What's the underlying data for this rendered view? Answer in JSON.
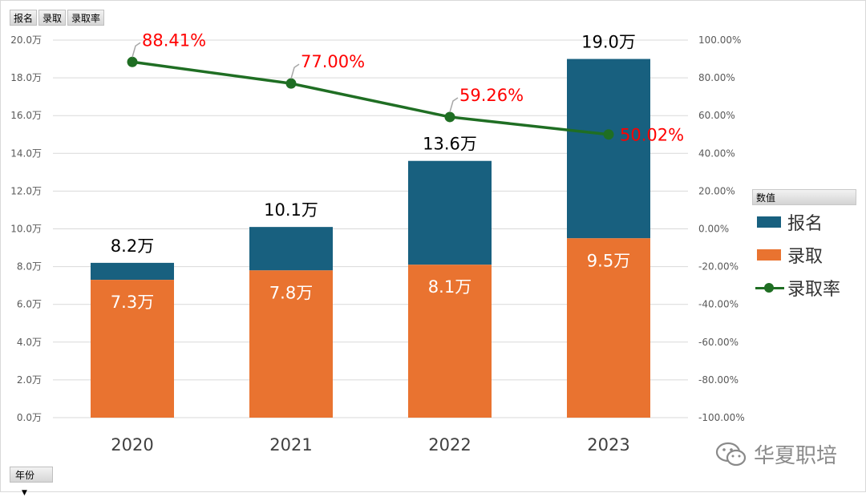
{
  "toolbar": {
    "fields": [
      "报名",
      "录取",
      "录取率"
    ]
  },
  "legend": {
    "header": "数值",
    "items": [
      {
        "label": "报名",
        "color": "#18607f"
      },
      {
        "label": "录取",
        "color": "#e97330"
      },
      {
        "label": "录取率",
        "color": "#1f6e23"
      }
    ]
  },
  "axis_field": {
    "label": "年份",
    "dropdown_icon": "triangle-down-icon"
  },
  "watermark": {
    "text": "华夏职培",
    "icon": "wechat-icon"
  },
  "chart_data": {
    "type": "bar",
    "stacked": true,
    "categories": [
      "2020",
      "2021",
      "2022",
      "2023"
    ],
    "series": [
      {
        "name": "录取",
        "type": "bar",
        "color": "#e97330",
        "values": [
          7.3,
          7.8,
          8.1,
          9.5
        ],
        "labels": [
          "7.3万",
          "7.8万",
          "8.1万",
          "9.5万"
        ]
      },
      {
        "name": "报名",
        "type": "bar",
        "color": "#18607f",
        "totals": [
          8.2,
          10.1,
          13.6,
          19.0
        ],
        "labels": [
          "8.2万",
          "10.1万",
          "13.6万",
          "19.0万"
        ]
      },
      {
        "name": "录取率",
        "type": "line",
        "axis": "right",
        "color": "#1f6e23",
        "values": [
          88.41,
          77.0,
          59.26,
          50.02
        ],
        "labels": [
          "88.41%",
          "77.00%",
          "59.26%",
          "50.02%"
        ]
      }
    ],
    "y_left": {
      "range": [
        0,
        20
      ],
      "ticks": [
        "0.0万",
        "2.0万",
        "4.0万",
        "6.0万",
        "8.0万",
        "10.0万",
        "12.0万",
        "14.0万",
        "16.0万",
        "18.0万",
        "20.0万"
      ]
    },
    "y_right": {
      "range": [
        -100,
        100
      ],
      "ticks": [
        "-100.00%",
        "-80.00%",
        "-60.00%",
        "-40.00%",
        "-20.00%",
        "0.00%",
        "20.00%",
        "40.00%",
        "60.00%",
        "80.00%",
        "100.00%"
      ]
    },
    "grid": true
  }
}
